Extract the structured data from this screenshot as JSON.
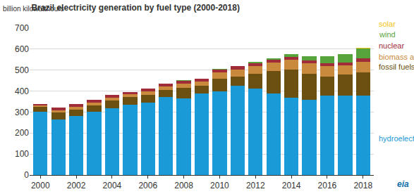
{
  "chart_data": {
    "type": "bar",
    "title": "Brazil electricity generation by fuel type (2000-2018)",
    "subtitle": "billion kilowatthours",
    "annotations": [
      "eia"
    ],
    "stacked": true,
    "grid": true,
    "categories": [
      "2000",
      null,
      "2002",
      null,
      "2004",
      null,
      "2006",
      null,
      "2008",
      null,
      "2010",
      null,
      "2012",
      null,
      "2014",
      null,
      "2016",
      null,
      "2018"
    ],
    "ylim": [
      0,
      700
    ],
    "yticks": [
      0,
      100,
      200,
      300,
      400,
      500,
      600,
      700
    ],
    "series": [
      {
        "name": "hydroelectricity",
        "color": "#1a9ad6",
        "values": [
          301,
          266,
          283,
          302,
          318,
          335,
          346,
          371,
          366,
          388,
          400,
          425,
          411,
          387,
          370,
          357,
          378,
          378,
          378
        ]
      },
      {
        "name": "fossil fuels",
        "color": "#6b5012",
        "values": [
          24,
          33,
          30,
          28,
          38,
          36,
          36,
          34,
          50,
          37,
          58,
          45,
          72,
          108,
          133,
          126,
          90,
          100,
          110
        ]
      },
      {
        "name": "biomass and waste",
        "color": "#c98a3e",
        "values": [
          8,
          10,
          12,
          14,
          14,
          14,
          15,
          18,
          20,
          21,
          31,
          32,
          35,
          40,
          45,
          48,
          50,
          45,
          52
        ]
      },
      {
        "name": "nuclear",
        "color": "#a02c3a",
        "values": [
          6,
          14,
          14,
          13,
          12,
          10,
          14,
          12,
          14,
          13,
          14,
          16,
          16,
          15,
          15,
          15,
          16,
          12,
          15
        ]
      },
      {
        "name": "wind",
        "color": "#58a43c",
        "values": [
          0,
          0,
          0,
          0,
          0,
          0,
          0.2,
          0.7,
          1.2,
          1.2,
          2.2,
          2.7,
          5,
          6.6,
          12,
          21.6,
          33.5,
          40,
          47
        ]
      },
      {
        "name": "solar",
        "color": "#f2c417",
        "values": [
          0,
          0,
          0,
          0,
          0,
          0,
          0,
          0,
          0,
          0,
          0,
          0,
          0,
          0,
          0,
          0,
          0.1,
          0.8,
          3
        ]
      }
    ]
  }
}
